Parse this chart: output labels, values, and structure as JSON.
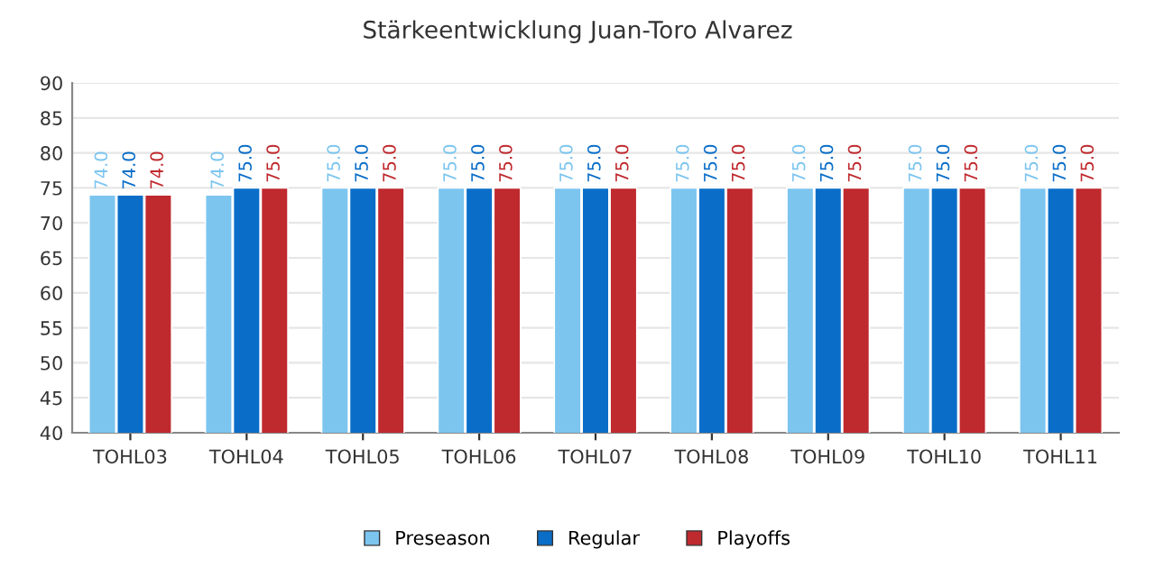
{
  "chart_data": {
    "type": "bar",
    "title": "Stärkeentwicklung Juan-Toro Alvarez",
    "categories": [
      "TOHL03",
      "TOHL04",
      "TOHL05",
      "TOHL06",
      "TOHL07",
      "TOHL08",
      "TOHL09",
      "TOHL10",
      "TOHL11"
    ],
    "series": [
      {
        "name": "Preseason",
        "color": "#7cc5ef",
        "values": [
          74,
          74,
          75,
          75,
          75,
          75,
          75,
          75,
          75
        ],
        "value_labels": [
          "74.0",
          "74.0",
          "75.0",
          "75.0",
          "75.0",
          "75.0",
          "75.0",
          "75.0",
          "75.0"
        ]
      },
      {
        "name": "Regular",
        "color": "#0a6ec8",
        "values": [
          74,
          75,
          75,
          75,
          75,
          75,
          75,
          75,
          75
        ],
        "value_labels": [
          "74.0",
          "75.0",
          "75.0",
          "75.0",
          "75.0",
          "75.0",
          "75.0",
          "75.0",
          "75.0"
        ]
      },
      {
        "name": "Playoffs",
        "color": "#bf2a2e",
        "values": [
          74,
          75,
          75,
          75,
          75,
          75,
          75,
          75,
          75
        ],
        "value_labels": [
          "74.0",
          "75.0",
          "75.0",
          "75.0",
          "75.0",
          "75.0",
          "75.0",
          "75.0",
          "75.0"
        ]
      }
    ],
    "ylim": [
      40,
      90
    ],
    "yticks": [
      40,
      45,
      50,
      55,
      60,
      65,
      70,
      75,
      80,
      85,
      90
    ],
    "grid": "y",
    "legend": "bottom"
  }
}
